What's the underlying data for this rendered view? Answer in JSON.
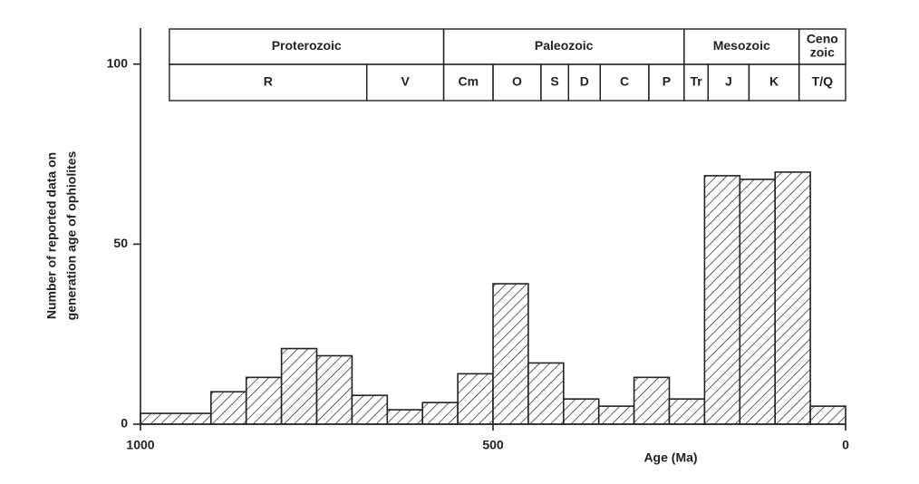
{
  "chart_data": {
    "type": "histogram",
    "ylabel": [
      "Number of reported data on",
      "generation age of ophiolites"
    ],
    "xlabel": "Age (Ma)",
    "bins": [
      1000,
      900,
      850,
      800,
      750,
      700,
      650,
      600,
      550,
      500,
      450,
      400,
      350,
      300,
      250,
      200,
      150,
      100,
      50,
      0
    ],
    "values": [
      3,
      9,
      13,
      21,
      19,
      8,
      4,
      6,
      14,
      39,
      17,
      7,
      5,
      13,
      7,
      69,
      68,
      70,
      5
    ],
    "xlim": [
      1000,
      0
    ],
    "ylim": [
      0,
      110
    ],
    "xticks": [
      1000,
      500,
      0
    ],
    "yticks": [
      0,
      50,
      100
    ],
    "time_scale": {
      "eras": [
        {
          "name": [
            "Proterozoic"
          ],
          "from": 959,
          "to": 570
        },
        {
          "name": [
            "Paleozoic"
          ],
          "from": 570,
          "to": 229
        },
        {
          "name": [
            "Mesozoic"
          ],
          "from": 229,
          "to": 66
        },
        {
          "name": [
            "Ceno",
            "zoic"
          ],
          "from": 66,
          "to": 0
        }
      ],
      "periods": [
        {
          "name": "R",
          "from": 959,
          "to": 679
        },
        {
          "name": "V",
          "from": 679,
          "to": 570
        },
        {
          "name": "Cm",
          "from": 570,
          "to": 500
        },
        {
          "name": "O",
          "from": 500,
          "to": 432
        },
        {
          "name": "S",
          "from": 432,
          "to": 393
        },
        {
          "name": "D",
          "from": 393,
          "to": 348
        },
        {
          "name": "C",
          "from": 348,
          "to": 279
        },
        {
          "name": "P",
          "from": 279,
          "to": 229
        },
        {
          "name": "Tr",
          "from": 229,
          "to": 195
        },
        {
          "name": "J",
          "from": 195,
          "to": 137
        },
        {
          "name": "K",
          "from": 137,
          "to": 66
        },
        {
          "name": "T/Q",
          "from": 66,
          "to": 0
        }
      ]
    }
  }
}
